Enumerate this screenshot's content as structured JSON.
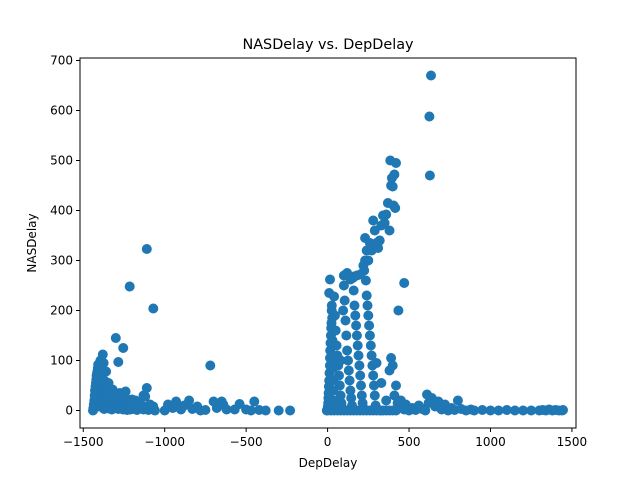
{
  "chart_data": {
    "type": "scatter",
    "title": "NASDelay vs. DepDelay",
    "xlabel": "DepDelay",
    "ylabel": "NASDelay",
    "xlim": [
      -1520,
      1525
    ],
    "ylim": [
      -35,
      705
    ],
    "xticks": [
      -1500,
      -1000,
      -500,
      0,
      500,
      1000,
      1500
    ],
    "xtick_labels": [
      "−1500",
      "−1000",
      "−500",
      "0",
      "500",
      "1000",
      "1500"
    ],
    "yticks": [
      0,
      100,
      200,
      300,
      400,
      500,
      600,
      700
    ],
    "ytick_labels": [
      "0",
      "100",
      "200",
      "300",
      "400",
      "500",
      "600",
      "700"
    ],
    "grid": false,
    "marker_color": "#1f77b4",
    "points": [
      [
        -1440,
        0
      ],
      [
        -1438,
        5
      ],
      [
        -1435,
        12
      ],
      [
        -1432,
        20
      ],
      [
        -1430,
        30
      ],
      [
        -1428,
        40
      ],
      [
        -1425,
        48
      ],
      [
        -1422,
        55
      ],
      [
        -1420,
        62
      ],
      [
        -1418,
        70
      ],
      [
        -1415,
        75
      ],
      [
        -1412,
        80
      ],
      [
        -1410,
        85
      ],
      [
        -1408,
        92
      ],
      [
        -1405,
        8
      ],
      [
        -1402,
        15
      ],
      [
        -1400,
        25
      ],
      [
        -1398,
        35
      ],
      [
        -1395,
        45
      ],
      [
        -1392,
        58
      ],
      [
        -1390,
        65
      ],
      [
        -1388,
        72
      ],
      [
        -1385,
        50
      ],
      [
        -1382,
        38
      ],
      [
        -1380,
        28
      ],
      [
        -1378,
        18
      ],
      [
        -1375,
        10
      ],
      [
        -1372,
        3
      ],
      [
        -1370,
        60
      ],
      [
        -1368,
        52
      ],
      [
        -1365,
        44
      ],
      [
        -1362,
        33
      ],
      [
        -1360,
        22
      ],
      [
        -1358,
        14
      ],
      [
        -1355,
        6
      ],
      [
        -1352,
        40
      ],
      [
        -1350,
        30
      ],
      [
        -1348,
        20
      ],
      [
        -1345,
        12
      ],
      [
        -1342,
        4
      ],
      [
        -1340,
        26
      ],
      [
        -1335,
        16
      ],
      [
        -1330,
        8
      ],
      [
        -1325,
        2
      ],
      [
        -1320,
        18
      ],
      [
        -1315,
        10
      ],
      [
        -1310,
        28
      ],
      [
        -1305,
        5
      ],
      [
        -1300,
        14
      ],
      [
        -1295,
        22
      ],
      [
        -1290,
        9
      ],
      [
        -1285,
        3
      ],
      [
        -1280,
        15
      ],
      [
        -1275,
        35
      ],
      [
        -1270,
        12
      ],
      [
        -1265,
        6
      ],
      [
        -1260,
        20
      ],
      [
        -1255,
        2
      ],
      [
        -1250,
        10
      ],
      [
        -1245,
        4
      ],
      [
        -1240,
        25
      ],
      [
        -1235,
        8
      ],
      [
        -1230,
        1
      ],
      [
        -1225,
        14
      ],
      [
        -1220,
        5
      ],
      [
        -1215,
        18
      ],
      [
        -1210,
        2
      ],
      [
        -1205,
        9
      ],
      [
        -1200,
        22
      ],
      [
        -1195,
        3
      ],
      [
        -1190,
        12
      ],
      [
        -1180,
        6
      ],
      [
        -1170,
        1
      ],
      [
        -1160,
        16
      ],
      [
        -1150,
        4
      ],
      [
        -1140,
        10
      ],
      [
        -1130,
        2
      ],
      [
        -1120,
        28
      ],
      [
        -1110,
        7
      ],
      [
        -1100,
        1
      ],
      [
        -1090,
        12
      ],
      [
        -1080,
        3
      ],
      [
        -1070,
        8
      ],
      [
        -1060,
        0
      ],
      [
        -1380,
        112
      ],
      [
        -1375,
        95
      ],
      [
        -1345,
        55
      ],
      [
        -1300,
        145
      ],
      [
        -1285,
        97
      ],
      [
        -1255,
        125
      ],
      [
        -1215,
        248
      ],
      [
        -1110,
        323
      ],
      [
        -1070,
        204
      ],
      [
        -1110,
        45
      ],
      [
        -1395,
        100
      ],
      [
        -1360,
        78
      ],
      [
        -1320,
        42
      ],
      [
        -1240,
        38
      ],
      [
        -1180,
        20
      ],
      [
        -1130,
        30
      ],
      [
        -1000,
        0
      ],
      [
        -980,
        12
      ],
      [
        -950,
        5
      ],
      [
        -930,
        18
      ],
      [
        -900,
        2
      ],
      [
        -880,
        10
      ],
      [
        -850,
        20
      ],
      [
        -830,
        3
      ],
      [
        -800,
        8
      ],
      [
        -780,
        0
      ],
      [
        -750,
        1
      ],
      [
        -720,
        90
      ],
      [
        -700,
        18
      ],
      [
        -680,
        5
      ],
      [
        -650,
        18
      ],
      [
        -640,
        12
      ],
      [
        -620,
        2
      ],
      [
        -570,
        2
      ],
      [
        -540,
        13
      ],
      [
        -500,
        2
      ],
      [
        -470,
        0
      ],
      [
        -450,
        18
      ],
      [
        -420,
        1
      ],
      [
        -380,
        0
      ],
      [
        -300,
        0
      ],
      [
        -230,
        0
      ],
      [
        -5,
        0
      ],
      [
        0,
        3
      ],
      [
        2,
        8
      ],
      [
        4,
        15
      ],
      [
        5,
        25
      ],
      [
        6,
        35
      ],
      [
        8,
        48
      ],
      [
        10,
        60
      ],
      [
        12,
        75
      ],
      [
        14,
        90
      ],
      [
        15,
        105
      ],
      [
        16,
        120
      ],
      [
        18,
        135
      ],
      [
        20,
        150
      ],
      [
        22,
        165
      ],
      [
        24,
        175
      ],
      [
        25,
        200
      ],
      [
        26,
        210
      ],
      [
        28,
        185
      ],
      [
        30,
        140
      ],
      [
        32,
        110
      ],
      [
        34,
        85
      ],
      [
        35,
        60
      ],
      [
        36,
        40
      ],
      [
        38,
        20
      ],
      [
        40,
        10
      ],
      [
        10,
        235
      ],
      [
        15,
        262
      ],
      [
        40,
        228
      ],
      [
        45,
        190
      ],
      [
        50,
        160
      ],
      [
        55,
        130
      ],
      [
        60,
        110
      ],
      [
        65,
        90
      ],
      [
        70,
        70
      ],
      [
        75,
        50
      ],
      [
        80,
        30
      ],
      [
        85,
        15
      ],
      [
        90,
        5
      ],
      [
        95,
        200
      ],
      [
        100,
        250
      ],
      [
        105,
        220
      ],
      [
        110,
        180
      ],
      [
        115,
        150
      ],
      [
        120,
        120
      ],
      [
        125,
        100
      ],
      [
        130,
        80
      ],
      [
        135,
        60
      ],
      [
        140,
        40
      ],
      [
        145,
        25
      ],
      [
        150,
        10
      ],
      [
        155,
        265
      ],
      [
        160,
        240
      ],
      [
        165,
        210
      ],
      [
        170,
        190
      ],
      [
        175,
        170
      ],
      [
        180,
        150
      ],
      [
        185,
        130
      ],
      [
        190,
        110
      ],
      [
        195,
        90
      ],
      [
        200,
        70
      ],
      [
        205,
        50
      ],
      [
        210,
        30
      ],
      [
        215,
        15
      ],
      [
        220,
        5
      ],
      [
        225,
        280
      ],
      [
        230,
        300
      ],
      [
        235,
        260
      ],
      [
        240,
        230
      ],
      [
        245,
        210
      ],
      [
        250,
        190
      ],
      [
        255,
        170
      ],
      [
        260,
        150
      ],
      [
        265,
        130
      ],
      [
        270,
        110
      ],
      [
        275,
        90
      ],
      [
        280,
        70
      ],
      [
        285,
        50
      ],
      [
        290,
        30
      ],
      [
        295,
        10
      ],
      [
        100,
        270
      ],
      [
        120,
        275
      ],
      [
        140,
        262
      ],
      [
        160,
        268
      ],
      [
        180,
        270
      ],
      [
        200,
        272
      ],
      [
        220,
        290
      ],
      [
        230,
        345
      ],
      [
        240,
        320
      ],
      [
        250,
        300
      ],
      [
        260,
        335
      ],
      [
        270,
        320
      ],
      [
        280,
        380
      ],
      [
        290,
        360
      ],
      [
        300,
        335
      ],
      [
        310,
        325
      ],
      [
        320,
        340
      ],
      [
        330,
        370
      ],
      [
        340,
        390
      ],
      [
        350,
        375
      ],
      [
        360,
        392
      ],
      [
        370,
        415
      ],
      [
        380,
        360
      ],
      [
        390,
        450
      ],
      [
        395,
        465
      ],
      [
        400,
        448
      ],
      [
        405,
        410
      ],
      [
        410,
        472
      ],
      [
        415,
        405
      ],
      [
        385,
        500
      ],
      [
        420,
        495
      ],
      [
        435,
        200
      ],
      [
        470,
        255
      ],
      [
        635,
        670
      ],
      [
        625,
        588
      ],
      [
        628,
        470
      ],
      [
        60,
        95
      ],
      [
        80,
        100
      ],
      [
        300,
        95
      ],
      [
        330,
        55
      ],
      [
        360,
        20
      ],
      [
        380,
        80
      ],
      [
        390,
        105
      ],
      [
        400,
        90
      ],
      [
        410,
        30
      ],
      [
        420,
        50
      ],
      [
        430,
        15
      ],
      [
        440,
        5
      ],
      [
        450,
        20
      ],
      [
        460,
        8
      ],
      [
        470,
        2
      ],
      [
        480,
        12
      ],
      [
        490,
        3
      ],
      [
        500,
        0
      ],
      [
        520,
        5
      ],
      [
        540,
        1
      ],
      [
        560,
        10
      ],
      [
        580,
        3
      ],
      [
        600,
        0
      ],
      [
        610,
        32
      ],
      [
        620,
        15
      ],
      [
        640,
        25
      ],
      [
        660,
        8
      ],
      [
        680,
        18
      ],
      [
        700,
        2
      ],
      [
        720,
        12
      ],
      [
        740,
        0
      ],
      [
        760,
        5
      ],
      [
        780,
        1
      ],
      [
        800,
        20
      ],
      [
        820,
        3
      ],
      [
        850,
        0
      ],
      [
        880,
        2
      ],
      [
        900,
        0
      ],
      [
        950,
        1
      ],
      [
        1000,
        0
      ],
      [
        1050,
        0
      ],
      [
        1100,
        1
      ],
      [
        1150,
        0
      ],
      [
        1200,
        0
      ],
      [
        1250,
        0
      ],
      [
        1300,
        0
      ],
      [
        1320,
        1
      ],
      [
        1340,
        0
      ],
      [
        1360,
        2
      ],
      [
        1380,
        0
      ],
      [
        1400,
        1
      ],
      [
        1420,
        0
      ],
      [
        1440,
        0
      ],
      [
        1445,
        1
      ],
      [
        0,
        0
      ],
      [
        20,
        0
      ],
      [
        40,
        0
      ],
      [
        60,
        0
      ],
      [
        80,
        0
      ],
      [
        100,
        0
      ],
      [
        120,
        0
      ],
      [
        140,
        0
      ],
      [
        160,
        0
      ],
      [
        180,
        0
      ],
      [
        200,
        0
      ],
      [
        220,
        0
      ],
      [
        240,
        0
      ],
      [
        260,
        0
      ],
      [
        280,
        0
      ],
      [
        300,
        0
      ],
      [
        320,
        0
      ],
      [
        340,
        0
      ],
      [
        360,
        0
      ],
      [
        380,
        0
      ],
      [
        400,
        0
      ],
      [
        420,
        0
      ]
    ]
  }
}
